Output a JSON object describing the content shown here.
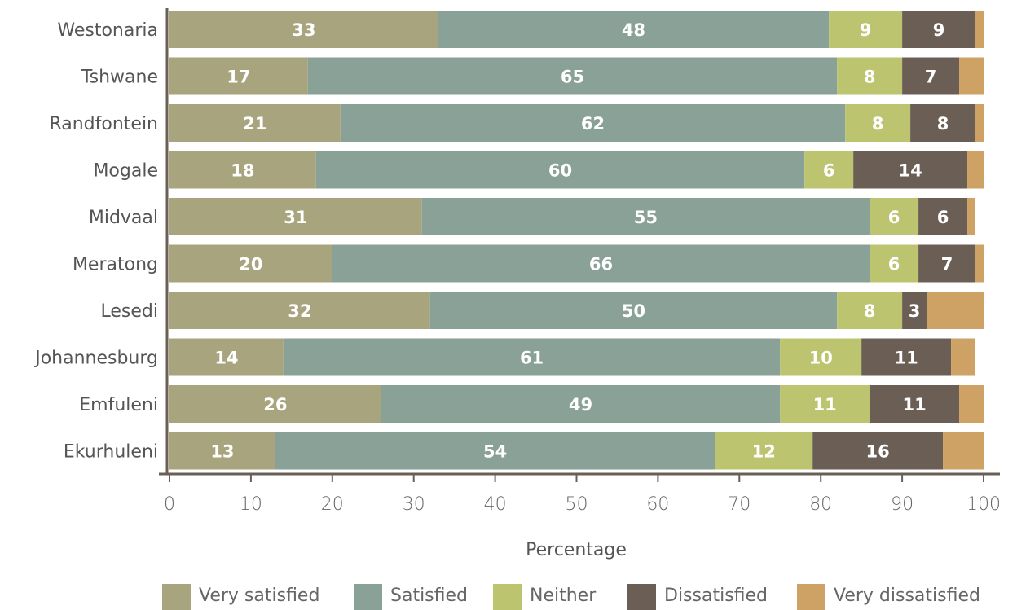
{
  "chart_data": {
    "type": "bar",
    "orientation": "horizontal",
    "stacked": true,
    "xlabel": "Percentage",
    "xlim": [
      0,
      100
    ],
    "xticks": [
      "0",
      "10",
      "20",
      "30",
      "40",
      "50",
      "60",
      "70",
      "80",
      "90",
      "100"
    ],
    "categories": [
      "Westonaria",
      "Tshwane",
      "Randfontein",
      "Mogale",
      "Midvaal",
      "Meratong",
      "Lesedi",
      "Johannesburg",
      "Emfuleni",
      "Ekurhuleni"
    ],
    "series": [
      {
        "name": "Very satisfied",
        "color": "#a8a47e",
        "values": [
          33,
          17,
          21,
          18,
          31,
          20,
          32,
          14,
          26,
          13
        ],
        "labels": [
          "33",
          "17",
          "21",
          "18",
          "31",
          "20",
          "32",
          "14",
          "26",
          "13"
        ]
      },
      {
        "name": "Satisfied",
        "color": "#8aa198",
        "values": [
          48,
          65,
          62,
          60,
          55,
          66,
          50,
          61,
          49,
          54
        ],
        "labels": [
          "48",
          "65",
          "62",
          "60",
          "55",
          "66",
          "50",
          "61",
          "49",
          "54"
        ]
      },
      {
        "name": "Neither",
        "color": "#bcc46f",
        "values": [
          9,
          8,
          8,
          6,
          6,
          6,
          8,
          10,
          11,
          12
        ],
        "labels": [
          "9",
          "8",
          "8",
          "6",
          "6",
          "6",
          "8",
          "10",
          "11",
          "12"
        ]
      },
      {
        "name": "Dissatisfied",
        "color": "#6b5e55",
        "values": [
          9,
          7,
          8,
          14,
          6,
          7,
          3,
          11,
          11,
          16
        ],
        "labels": [
          "9",
          "7",
          "8",
          "14",
          "6",
          "7",
          "3",
          "11",
          "11",
          "16"
        ]
      },
      {
        "name": "Very dissatisfied",
        "color": "#cda264",
        "values": [
          1,
          4,
          1,
          3,
          1,
          1,
          7,
          3,
          3,
          5
        ],
        "labels": [
          "",
          "",
          "",
          "",
          "",
          "",
          "",
          "",
          "",
          ""
        ]
      }
    ],
    "legend_position": "bottom",
    "grid": false
  }
}
